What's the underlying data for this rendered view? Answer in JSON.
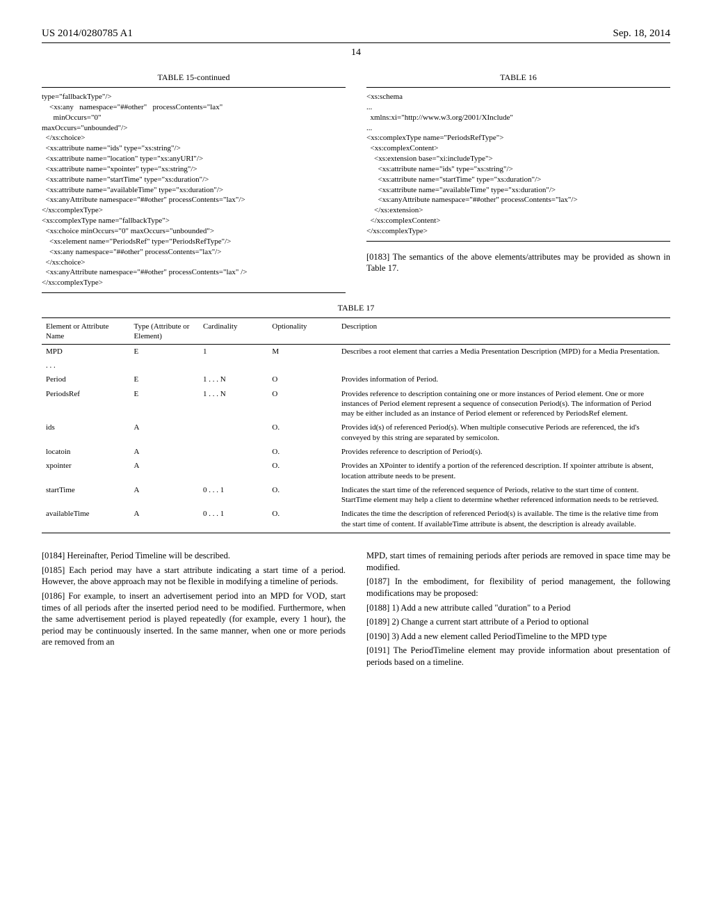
{
  "header": {
    "pubNumber": "US 2014/0280785 A1",
    "date": "Sep. 18, 2014"
  },
  "pageNumber": "14",
  "table15": {
    "title": "TABLE 15-continued",
    "code": "type=\"fallbackType\"/>\n    <xs:any   namespace=\"##other\"   processContents=\"lax\"\n      minOccurs=\"0\"\nmaxOccurs=\"unbounded\"/>\n  </xs:choice>\n  <xs:attribute name=\"ids\" type=\"xs:string\"/>\n  <xs:attribute name=\"location\" type=\"xs:anyURI\"/>\n  <xs:attribute name=\"xpointer\" type=\"xs:string\"/>\n  <xs:attribute name=\"startTime\" type=\"xs:duration\"/>\n  <xs:attribute name=\"availableTime\" type=\"xs:duration\"/>\n  <xs:anyAttribute namespace=\"##other\" processContents=\"lax\"/>\n</xs:complexType>\n<xs:complexType name=\"fallbackType\">\n  <xs:choice minOccurs=\"0\" maxOccurs=\"unbounded\">\n    <xs:element name=\"PeriodsRef\" type=\"PeriodsRefType\"/>\n    <xs:any namespace=\"##other\" processContents=\"lax\"/>\n  </xs:choice>\n  <xs:anyAttribute namespace=\"##other\" processContents=\"lax\" />\n</xs:complexType>"
  },
  "table16": {
    "title": "TABLE 16",
    "code": "<xs:schema\n...\n  xmlns:xi=\"http://www.w3.org/2001/XInclude\"\n...\n<xs:complexType name=\"PeriodsRefType\">\n  <xs:complexContent>\n    <xs:extension base=\"xi:includeType\">\n      <xs:attribute name=\"ids\" type=\"xs:string\"/>\n      <xs:attribute name=\"startTime\" type=\"xs:duration\"/>\n      <xs:attribute name=\"availableTime\" type=\"xs:duration\"/>\n      <xs:anyAttribute namespace=\"##other\" processContents=\"lax\"/>\n    </xs:extension>\n  </xs:complexContent>\n</xs:complexType>"
  },
  "p0183": "[0183]   The semantics of the above elements/attributes may be provided as shown in Table 17.",
  "table17": {
    "title": "TABLE 17",
    "headers": [
      "Element or Attribute Name",
      "Type (Attribute or Element)",
      "Cardinality",
      "Optionality",
      "Description"
    ],
    "rows": [
      [
        "MPD",
        "E",
        "1",
        "M",
        "Describes a root element that carries a Media Presentation Description (MPD) for a Media Presentation."
      ],
      [
        ". . .",
        "",
        "",
        "",
        ""
      ],
      [
        "Period",
        "E",
        "1 . . . N",
        "O",
        "Provides information of Period."
      ],
      [
        "PeriodsRef",
        "E",
        "1 . . . N",
        "O",
        "Provides reference to description containing one or more instances of Period element. One or more instances of Period element represent a sequence of consecution Period(s). The information of Period may be either included as an instance of Period element or referenced by PeriodsRef element."
      ],
      [
        "ids",
        "A",
        "",
        "O.",
        "Provides id(s) of referenced Period(s). When multiple consecutive Periods are referenced, the id's conveyed by this string are separated by semicolon."
      ],
      [
        "locatoin",
        "A",
        "",
        "O.",
        "Provides reference to description of Period(s)."
      ],
      [
        "xpointer",
        "A",
        "",
        "O.",
        "Provides an XPointer to identify a portion of the referenced description. If xpointer attribute is absent, location attribute needs to be present."
      ],
      [
        "startTime",
        "A",
        "0 . . . 1",
        "O.",
        "Indicates the start time of the referenced sequence of Periods, relative to the start time of content. StartTime element may help a client to determine whether referenced information needs to be retrieved."
      ],
      [
        "availableTime",
        "A",
        "0 . . . 1",
        "O.",
        "Indicates the time the description of referenced Period(s) is available. The time is the relative time from the start time of content. If availableTime attribute is absent, the description is already available."
      ]
    ]
  },
  "paras": {
    "p0184": "[0184]   Hereinafter, Period Timeline will be described.",
    "p0185": "[0185]   Each period may have a start attribute indicating a start time of a period. However, the above approach may not be flexible in modifying a timeline of periods.",
    "p0186": "[0186]   For example, to insert an advertisement period into an MPD for VOD, start times of all periods after the inserted period need to be modified. Furthermore, when the same advertisement period is played repeatedly (for example, every 1 hour), the period may be continuously inserted. In the same manner, when one or more periods are removed from an",
    "p0186b": "MPD, start times of remaining periods after periods are removed in space time may be modified.",
    "p0187": "[0187]   In the embodiment, for flexibility of period management, the following modifications may be proposed:",
    "p0188": "[0188]   1) Add a new attribute called \"duration\" to a Period",
    "p0189": "[0189]   2) Change a current start attribute of a Period to optional",
    "p0190": "[0190]   3) Add a new element called PeriodTimeline to the MPD type",
    "p0191": "[0191]   The PeriodTimeline element may provide information about presentation of periods based on a timeline."
  }
}
